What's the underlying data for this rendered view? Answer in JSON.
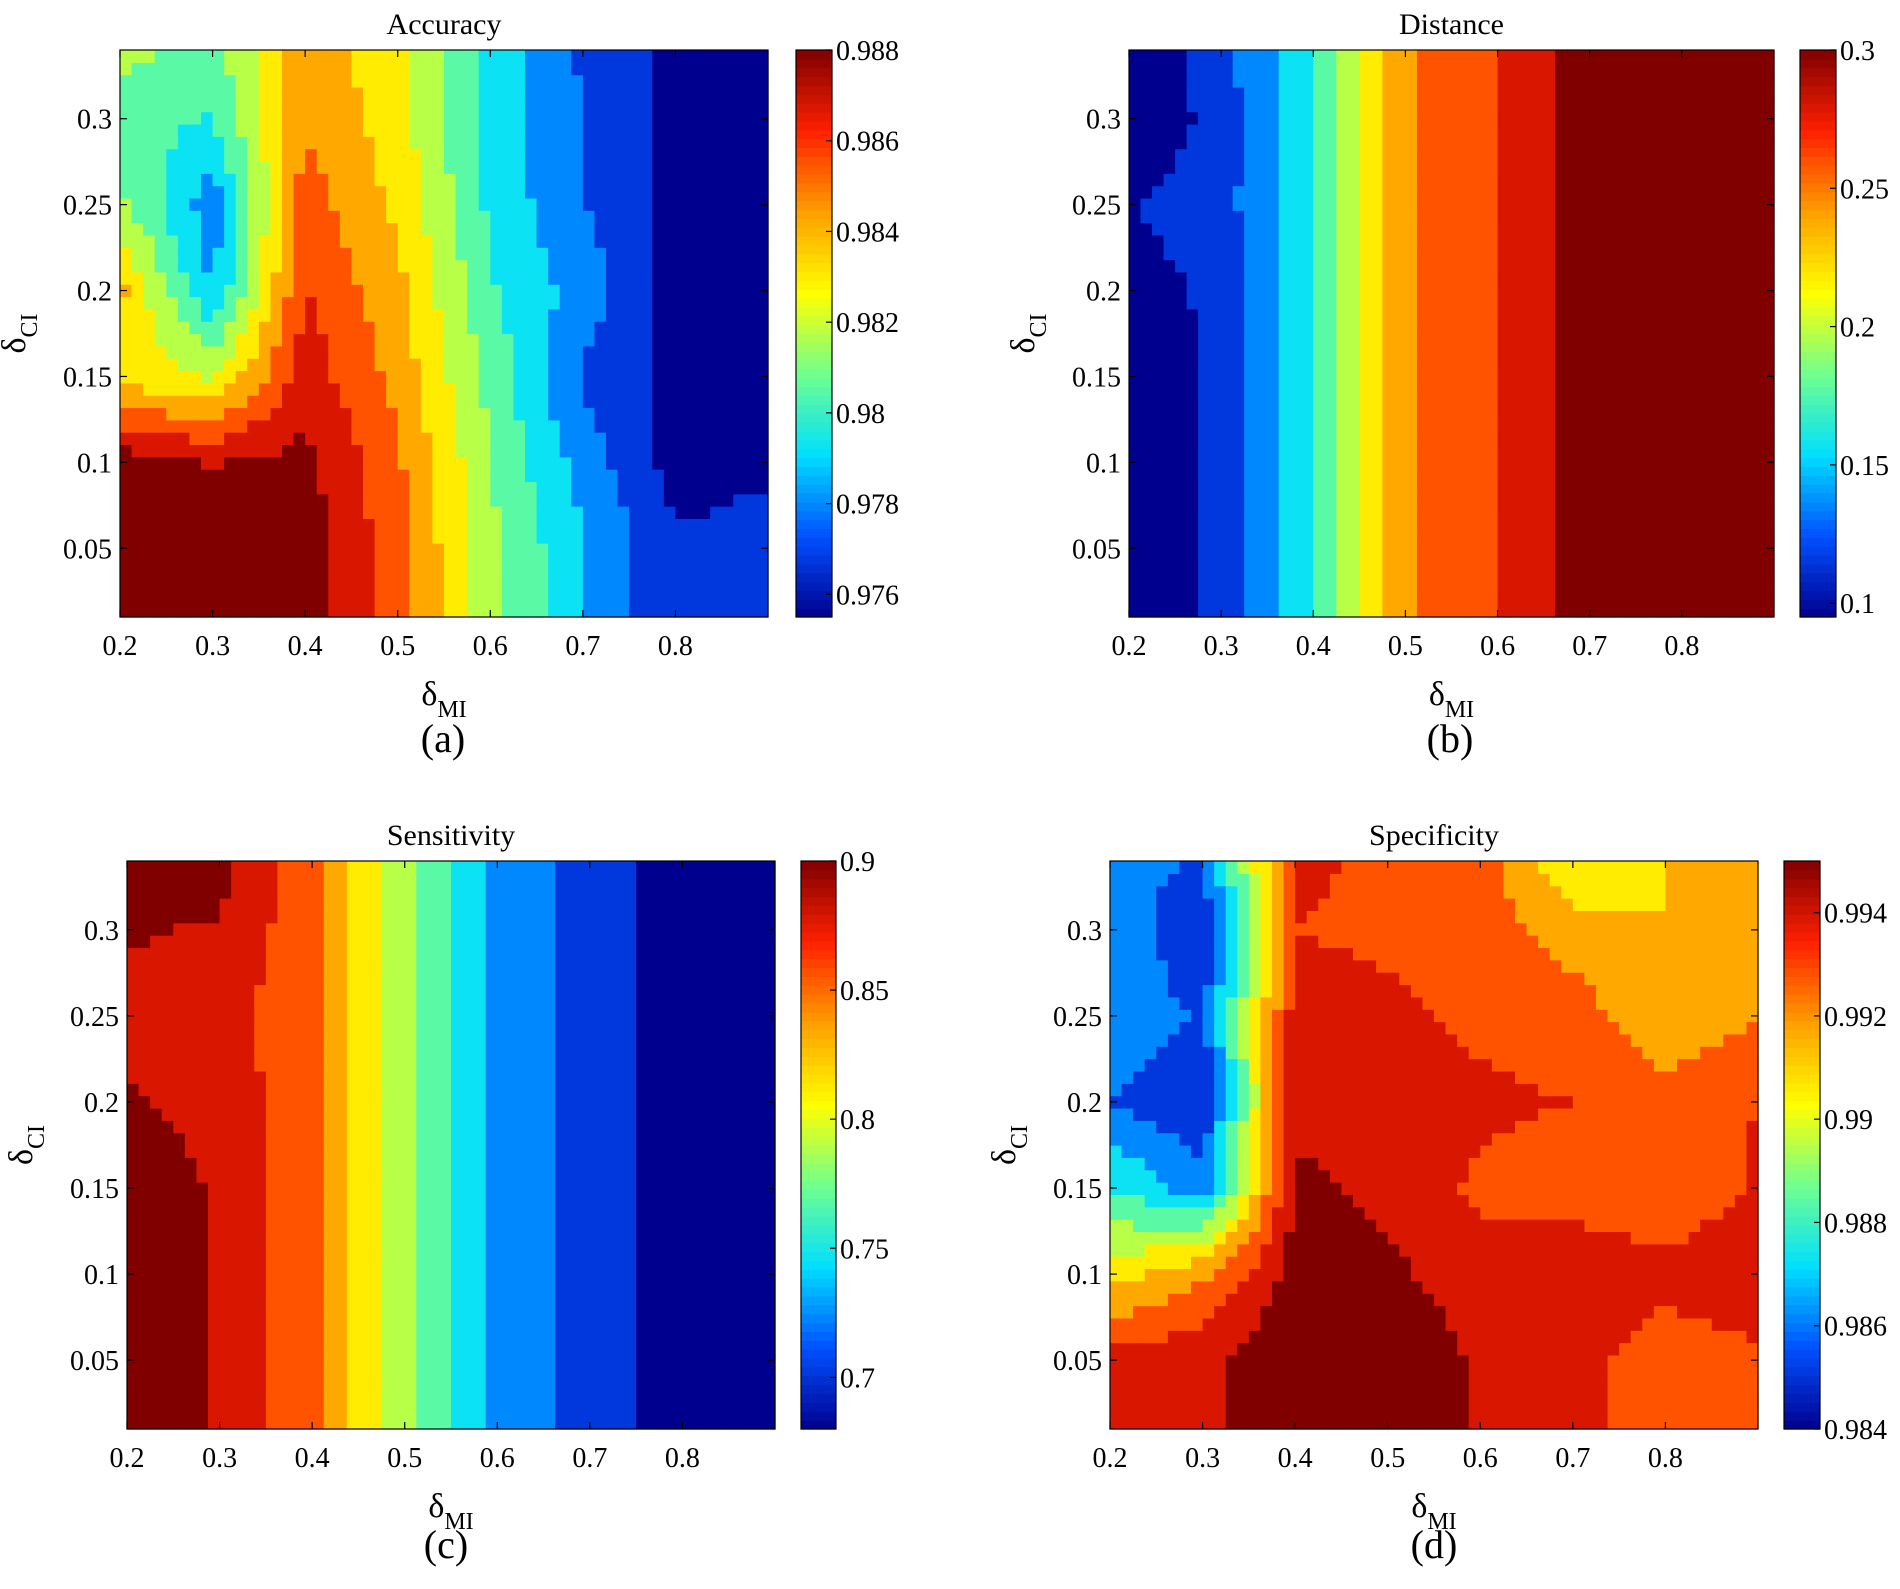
{
  "figure": {
    "panels": [
      "(a)",
      "(b)",
      "(c)",
      "(d)"
    ]
  },
  "colormap": [
    "#00008f",
    "#0050ff",
    "#00dfff",
    "#70ff8f",
    "#ffff00",
    "#ff9f00",
    "#ff2000",
    "#800000"
  ],
  "chart_data": [
    {
      "type": "heatmap",
      "style": "filled-contour",
      "title": "Accuracy",
      "xlabel": "δ_MI",
      "ylabel": "δ_CI",
      "x": [
        0.2,
        0.3,
        0.4,
        0.5,
        0.6,
        0.7,
        0.8,
        0.9
      ],
      "y": [
        0.01,
        0.05,
        0.1,
        0.15,
        0.2,
        0.25,
        0.3,
        0.34
      ],
      "xlim": [
        0.2,
        0.9
      ],
      "ylim": [
        0.01,
        0.34
      ],
      "xticks": [
        "0.2",
        "0.3",
        "0.4",
        "0.5",
        "0.6",
        "0.7",
        "0.8"
      ],
      "yticks": [
        "0.05",
        "0.1",
        "0.15",
        "0.2",
        "0.25",
        "0.3"
      ],
      "colorbar_range": [
        0.9755,
        0.988
      ],
      "colorbar_ticks": [
        "0.976",
        "0.978",
        "0.98",
        "0.982",
        "0.984",
        "0.986",
        "0.988"
      ],
      "z": [
        [
          0.9878,
          0.9878,
          0.9876,
          0.985,
          0.9815,
          0.979,
          0.9768,
          0.977
        ],
        [
          0.9878,
          0.9878,
          0.9876,
          0.985,
          0.9815,
          0.979,
          0.9768,
          0.977
        ],
        [
          0.9876,
          0.9868,
          0.9872,
          0.9848,
          0.9812,
          0.9784,
          0.9762,
          0.9765
        ],
        [
          0.983,
          0.9822,
          0.9864,
          0.9842,
          0.9808,
          0.9776,
          0.9762,
          0.9765
        ],
        [
          0.9838,
          0.9788,
          0.9858,
          0.9838,
          0.9802,
          0.9784,
          0.9762,
          0.9765
        ],
        [
          0.9815,
          0.9782,
          0.9852,
          0.9832,
          0.9798,
          0.9778,
          0.9762,
          0.9765
        ],
        [
          0.9805,
          0.98,
          0.9845,
          0.9828,
          0.9796,
          0.9778,
          0.9762,
          0.9765
        ],
        [
          0.9815,
          0.9808,
          0.9843,
          0.9826,
          0.9795,
          0.9776,
          0.9762,
          0.9763
        ]
      ]
    },
    {
      "type": "heatmap",
      "style": "filled-contour",
      "title": "Distance",
      "xlabel": "δ_MI",
      "ylabel": "δ_CI",
      "x": [
        0.2,
        0.3,
        0.4,
        0.5,
        0.6,
        0.7,
        0.8,
        0.9
      ],
      "y": [
        0.01,
        0.05,
        0.1,
        0.15,
        0.2,
        0.25,
        0.3,
        0.34
      ],
      "xlim": [
        0.2,
        0.9
      ],
      "ylim": [
        0.01,
        0.34
      ],
      "xticks": [
        "0.2",
        "0.3",
        "0.4",
        "0.5",
        "0.6",
        "0.7",
        "0.8"
      ],
      "yticks": [
        "0.05",
        "0.1",
        "0.15",
        "0.2",
        "0.25",
        "0.3"
      ],
      "colorbar_range": [
        0.095,
        0.3
      ],
      "colorbar_ticks": [
        "0.1",
        "0.15",
        "0.2",
        "0.25",
        "0.3"
      ],
      "z": [
        [
          0.1,
          0.118,
          0.17,
          0.24,
          0.262,
          0.294,
          0.3,
          0.3
        ],
        [
          0.1,
          0.118,
          0.17,
          0.24,
          0.262,
          0.294,
          0.3,
          0.3
        ],
        [
          0.1,
          0.118,
          0.17,
          0.24,
          0.262,
          0.294,
          0.3,
          0.3
        ],
        [
          0.1,
          0.118,
          0.17,
          0.24,
          0.262,
          0.294,
          0.3,
          0.3
        ],
        [
          0.105,
          0.118,
          0.17,
          0.24,
          0.262,
          0.294,
          0.3,
          0.3
        ],
        [
          0.113,
          0.124,
          0.17,
          0.24,
          0.262,
          0.294,
          0.3,
          0.3
        ],
        [
          0.095,
          0.122,
          0.17,
          0.24,
          0.262,
          0.294,
          0.3,
          0.3
        ],
        [
          0.095,
          0.125,
          0.17,
          0.24,
          0.262,
          0.294,
          0.3,
          0.3
        ]
      ]
    },
    {
      "type": "heatmap",
      "style": "filled-contour",
      "title": "Sensitivity",
      "xlabel": "δ_MI",
      "ylabel": "δ_CI",
      "x": [
        0.2,
        0.3,
        0.4,
        0.5,
        0.6,
        0.7,
        0.8,
        0.9
      ],
      "y": [
        0.01,
        0.05,
        0.1,
        0.15,
        0.2,
        0.25,
        0.3,
        0.34
      ],
      "xlim": [
        0.2,
        0.9
      ],
      "ylim": [
        0.01,
        0.34
      ],
      "xticks": [
        "0.2",
        "0.3",
        "0.4",
        "0.5",
        "0.6",
        "0.7",
        "0.8"
      ],
      "yticks": [
        "0.05",
        "0.1",
        "0.15",
        "0.2",
        "0.25",
        "0.3"
      ],
      "colorbar_range": [
        0.68,
        0.9
      ],
      "colorbar_ticks": [
        "0.7",
        "0.75",
        "0.8",
        "0.85",
        "0.9"
      ],
      "z": [
        [
          0.892,
          0.878,
          0.845,
          0.785,
          0.735,
          0.71,
          0.688,
          0.688
        ],
        [
          0.892,
          0.878,
          0.845,
          0.785,
          0.735,
          0.71,
          0.688,
          0.688
        ],
        [
          0.892,
          0.878,
          0.845,
          0.785,
          0.735,
          0.71,
          0.688,
          0.688
        ],
        [
          0.892,
          0.878,
          0.845,
          0.785,
          0.735,
          0.71,
          0.688,
          0.688
        ],
        [
          0.882,
          0.874,
          0.845,
          0.785,
          0.735,
          0.71,
          0.688,
          0.688
        ],
        [
          0.874,
          0.868,
          0.845,
          0.785,
          0.735,
          0.71,
          0.688,
          0.688
        ],
        [
          0.882,
          0.878,
          0.845,
          0.785,
          0.735,
          0.71,
          0.688,
          0.688
        ],
        [
          0.894,
          0.888,
          0.845,
          0.785,
          0.735,
          0.71,
          0.688,
          0.688
        ]
      ]
    },
    {
      "type": "heatmap",
      "style": "filled-contour",
      "title": "Specificity",
      "xlabel": "δ_MI",
      "ylabel": "δ_CI",
      "x": [
        0.2,
        0.3,
        0.4,
        0.5,
        0.6,
        0.7,
        0.8,
        0.9
      ],
      "y": [
        0.01,
        0.05,
        0.1,
        0.15,
        0.2,
        0.25,
        0.3,
        0.34
      ],
      "xlim": [
        0.2,
        0.9
      ],
      "ylim": [
        0.01,
        0.34
      ],
      "xticks": [
        "0.2",
        "0.3",
        "0.4",
        "0.5",
        "0.6",
        "0.7",
        "0.8"
      ],
      "yticks": [
        "0.05",
        "0.1",
        "0.15",
        "0.2",
        "0.25",
        "0.3"
      ],
      "colorbar_range": [
        0.984,
        0.995
      ],
      "colorbar_ticks": [
        "0.984",
        "0.986",
        "0.988",
        "0.99",
        "0.992",
        "0.994"
      ],
      "z": [
        [
          0.9935,
          0.9938,
          0.9948,
          0.995,
          0.9938,
          0.9935,
          0.9922,
          0.9928
        ],
        [
          0.9935,
          0.9938,
          0.9948,
          0.995,
          0.9938,
          0.9935,
          0.9922,
          0.9928
        ],
        [
          0.9905,
          0.9918,
          0.9945,
          0.9942,
          0.9935,
          0.9938,
          0.9935,
          0.9938
        ],
        [
          0.988,
          0.9865,
          0.9942,
          0.9938,
          0.9928,
          0.9925,
          0.992,
          0.9932
        ],
        [
          0.986,
          0.985,
          0.9938,
          0.9932,
          0.9932,
          0.993,
          0.9925,
          0.993
        ],
        [
          0.987,
          0.9858,
          0.9935,
          0.9932,
          0.9928,
          0.9925,
          0.9912,
          0.992
        ],
        [
          0.9868,
          0.985,
          0.993,
          0.9928,
          0.9925,
          0.9915,
          0.991,
          0.9915
        ],
        [
          0.9862,
          0.986,
          0.9932,
          0.9928,
          0.9925,
          0.99,
          0.991,
          0.991
        ]
      ]
    }
  ]
}
